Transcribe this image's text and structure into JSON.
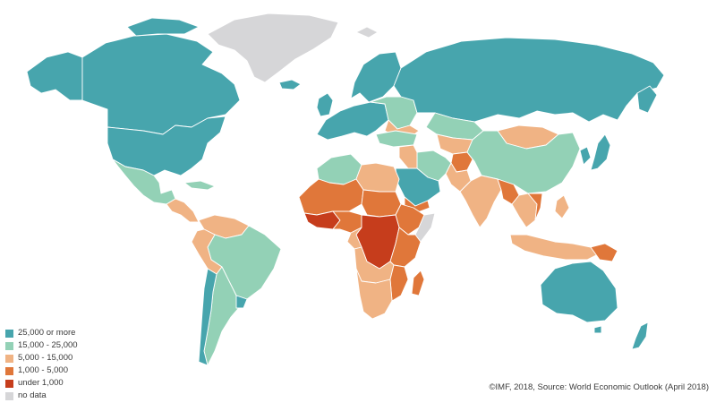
{
  "colors": {
    "c25": "#47a5ad",
    "c15": "#93d1b6",
    "c5": "#f0b384",
    "c1": "#e0773a",
    "c0": "#c63d1c",
    "nd": "#d6d6d8"
  },
  "legend": [
    {
      "label": "25,000 or more",
      "color": "#47a5ad"
    },
    {
      "label": "15,000 - 25,000",
      "color": "#93d1b6"
    },
    {
      "label": "5,000 - 15,000",
      "color": "#f0b384"
    },
    {
      "label": "1,000 - 5,000",
      "color": "#e0773a"
    },
    {
      "label": "under 1,000",
      "color": "#c63d1c"
    },
    {
      "label": "no data",
      "color": "#d6d6d8"
    }
  ],
  "source": "©IMF, 2018, Source: World Economic Outlook (April 2018)"
}
